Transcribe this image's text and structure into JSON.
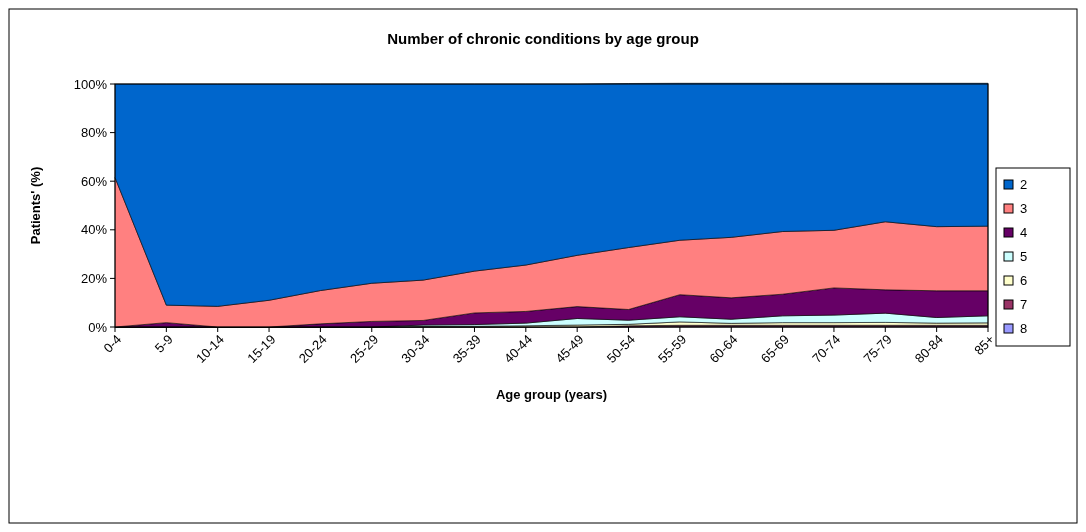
{
  "chart_data": {
    "type": "area",
    "title": "Number of chronic conditions by age group",
    "xlabel": "Age group (years)",
    "ylabel": "Patients' (%)",
    "stacked": true,
    "legend": "right",
    "grid": false,
    "categories": [
      "0-4",
      "5-9",
      "10-14",
      "15-19",
      "20-24",
      "25-29",
      "30-34",
      "35-39",
      "40-44",
      "45-49",
      "50-54",
      "55-59",
      "60-64",
      "65-69",
      "70-74",
      "75-79",
      "80-84",
      "85+"
    ],
    "ylim": [
      0,
      100
    ],
    "yticks": [
      {
        "value": 0,
        "label": "0%"
      },
      {
        "value": 20,
        "label": "20%"
      },
      {
        "value": 40,
        "label": "40%"
      },
      {
        "value": 60,
        "label": "60%"
      },
      {
        "value": 80,
        "label": "80%"
      },
      {
        "value": 100,
        "label": "100%"
      }
    ],
    "series": [
      {
        "name": "8",
        "color": "#9999ff",
        "values": [
          0,
          0,
          0,
          0,
          0,
          0,
          0,
          0,
          0,
          0,
          0,
          0.1,
          0.1,
          0.1,
          0.1,
          0.1,
          0.1,
          0.1
        ]
      },
      {
        "name": "7",
        "color": "#993366",
        "values": [
          0,
          0,
          0,
          0,
          0,
          0,
          0,
          0,
          0,
          0,
          0.5,
          0.6,
          0.6,
          0.6,
          0.6,
          0.6,
          0.6,
          0.6
        ]
      },
      {
        "name": "6",
        "color": "#ffffcc",
        "values": [
          0,
          0,
          0,
          0,
          0,
          0,
          0.2,
          0.3,
          0.5,
          0.8,
          0.6,
          1.4,
          0.8,
          1.1,
          1.1,
          1.2,
          0.9,
          1.0
        ]
      },
      {
        "name": "5",
        "color": "#ccffff",
        "values": [
          0,
          0,
          0,
          0,
          0,
          0,
          0.6,
          0.7,
          1.1,
          2.7,
          1.7,
          2.1,
          1.7,
          2.8,
          3.1,
          3.8,
          2.3,
          2.9
        ]
      },
      {
        "name": "4",
        "color": "#660066",
        "values": [
          0,
          1.8,
          0,
          0,
          1.3,
          2.3,
          1.9,
          4.8,
          4.8,
          4.9,
          4.4,
          9.1,
          8.8,
          8.9,
          11.2,
          9.6,
          11,
          10.3
        ]
      },
      {
        "name": "3",
        "color": "#ff8080",
        "values": [
          61.5,
          7.2,
          8.5,
          11,
          13.7,
          15.7,
          16.6,
          17.2,
          19.1,
          21.1,
          25.5,
          22.4,
          24.9,
          25.8,
          23.7,
          28,
          26.4,
          26.6
        ]
      },
      {
        "name": "2",
        "color": "#0066cc",
        "values": [
          38.5,
          91,
          91.5,
          89,
          85,
          82,
          80.7,
          77,
          74.5,
          70.5,
          67.5,
          64.6,
          63.4,
          61,
          60.5,
          57,
          59,
          58.8
        ]
      }
    ]
  }
}
